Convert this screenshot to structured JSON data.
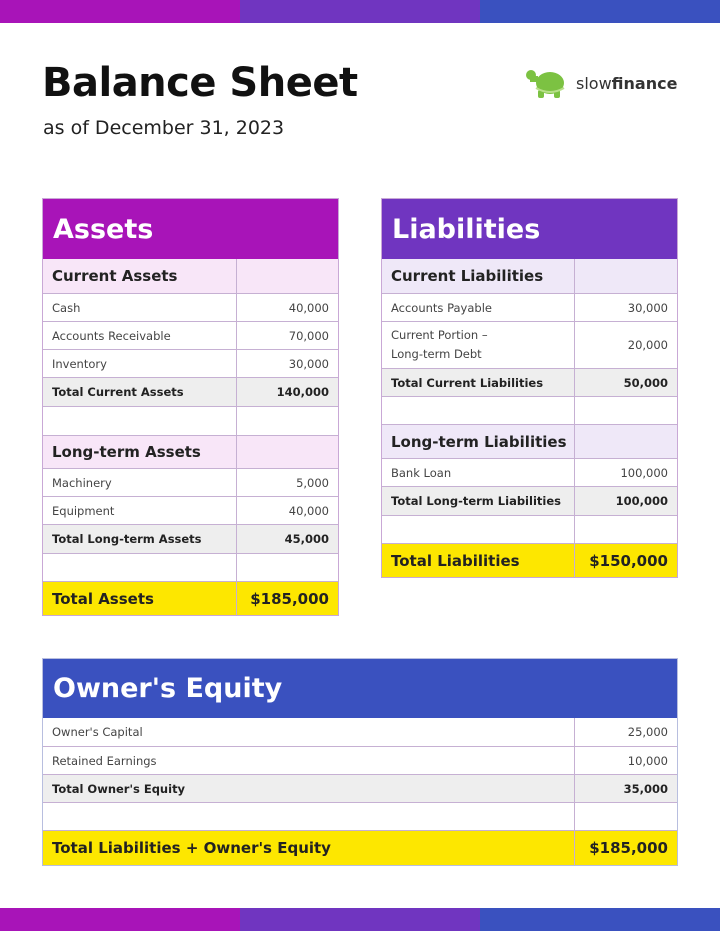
{
  "header": {
    "title": "Balance Sheet",
    "subtitle": "as of December 31, 2023",
    "logo_prefix": "slow",
    "logo_suffix": "finance"
  },
  "colors": {
    "assets": "#a814b8",
    "liabilities": "#7035c0",
    "equity": "#3a51bf",
    "highlight": "#fde700"
  },
  "assets": {
    "title": "Assets",
    "current": {
      "label": "Current Assets",
      "items": [
        {
          "label": "Cash",
          "value": "40,000"
        },
        {
          "label": "Accounts Receivable",
          "value": "70,000"
        },
        {
          "label": "Inventory",
          "value": "30,000"
        }
      ],
      "total": {
        "label": "Total Current Assets",
        "value": "140,000"
      }
    },
    "longterm": {
      "label": "Long-term Assets",
      "items": [
        {
          "label": "Machinery",
          "value": "5,000"
        },
        {
          "label": "Equipment",
          "value": "40,000"
        }
      ],
      "total": {
        "label": "Total Long-term Assets",
        "value": "45,000"
      }
    },
    "total": {
      "label": "Total Assets",
      "value": "$185,000"
    }
  },
  "liabilities": {
    "title": "Liabilities",
    "current": {
      "label": "Current Liabilities",
      "items": [
        {
          "label": "Accounts Payable",
          "value": "30,000"
        },
        {
          "label": "Current Portion –",
          "label2": "Long-term Debt",
          "value": "20,000"
        }
      ],
      "total": {
        "label": "Total Current Liabilities",
        "value": "50,000"
      }
    },
    "longterm": {
      "label": "Long-term Liabilities",
      "items": [
        {
          "label": "Bank Loan",
          "value": "100,000"
        }
      ],
      "total": {
        "label": "Total Long-term Liabilities",
        "value": "100,000"
      }
    },
    "total": {
      "label": "Total Liabilities",
      "value": "$150,000"
    }
  },
  "equity": {
    "title": "Owner's Equity",
    "items": [
      {
        "label": "Owner's Capital",
        "value": "25,000"
      },
      {
        "label": "Retained Earnings",
        "value": "10,000"
      }
    ],
    "total": {
      "label": "Total Owner's Equity",
      "value": "35,000"
    },
    "grand": {
      "label": "Total Liabilities + Owner's Equity",
      "value": "$185,000"
    }
  }
}
